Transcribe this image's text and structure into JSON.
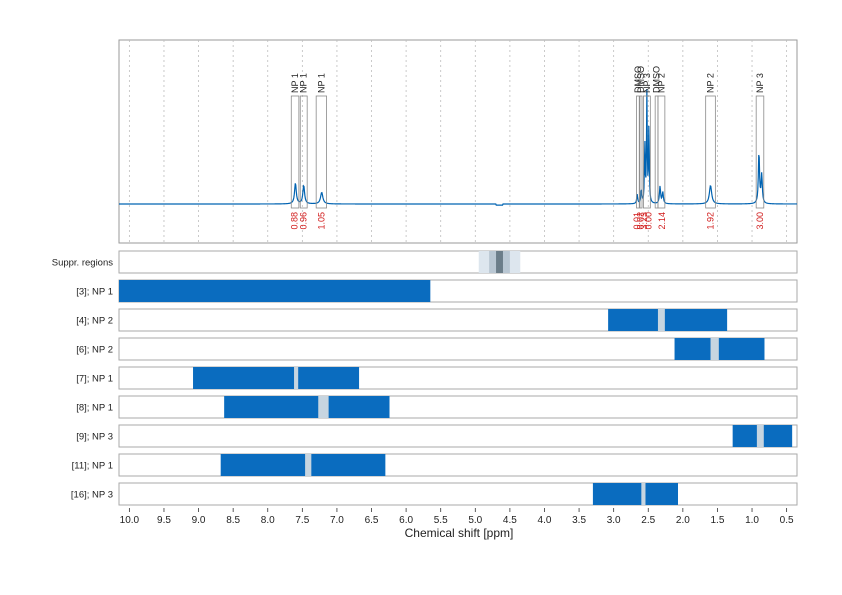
{
  "chart_data": {
    "type": "nmr-spectrum-with-regions",
    "xlabel": "Chemical shift [ppm]",
    "xlim": [
      10.15,
      0.35
    ],
    "x_reversed": true,
    "x_ticks": [
      "10.0",
      "9.5",
      "9.0",
      "8.5",
      "8.0",
      "7.5",
      "7.0",
      "6.5",
      "6.0",
      "5.5",
      "5.0",
      "4.5",
      "4.0",
      "3.5",
      "3.0",
      "2.5",
      "2.0",
      "1.5",
      "1.0",
      "0.5"
    ],
    "grid": "vertical dotted lines at every 0.5 ppm in the spectrum panel",
    "line_color": "#0063b2",
    "bar_color": "#0a6cbf",
    "gap_color": "#c7d5e0",
    "annotation_color": "#d11a1a",
    "spectrum_peaks": [
      {
        "ppm": 7.6,
        "height": 0.18,
        "width": 0.015
      },
      {
        "ppm": 7.48,
        "height": 0.16,
        "width": 0.015
      },
      {
        "ppm": 7.22,
        "height": 0.1,
        "width": 0.02
      },
      {
        "ppm": 2.66,
        "height": 0.08,
        "width": 0.008
      },
      {
        "ppm": 2.6,
        "height": 0.12,
        "width": 0.008
      },
      {
        "ppm": 2.55,
        "height": 0.55,
        "width": 0.006
      },
      {
        "ppm": 2.52,
        "height": 0.95,
        "width": 0.006
      },
      {
        "ppm": 2.49,
        "height": 0.7,
        "width": 0.006
      },
      {
        "ppm": 2.33,
        "height": 0.15,
        "width": 0.01
      },
      {
        "ppm": 2.29,
        "height": 0.1,
        "width": 0.01
      },
      {
        "ppm": 1.6,
        "height": 0.16,
        "width": 0.02
      },
      {
        "ppm": 0.9,
        "height": 0.45,
        "width": 0.01
      },
      {
        "ppm": 0.86,
        "height": 0.25,
        "width": 0.01
      }
    ],
    "peak_labels": [
      {
        "label": "NP 1",
        "lo": 7.55,
        "hi": 7.66
      },
      {
        "label": "NP 1",
        "lo": 7.43,
        "hi": 7.53
      },
      {
        "label": "NP 1",
        "lo": 7.15,
        "hi": 7.3
      },
      {
        "label": "DMSO",
        "lo": 2.63,
        "hi": 2.67
      },
      {
        "label": "DMSO",
        "lo": 2.59,
        "hi": 2.62
      },
      {
        "label": "NP 3",
        "lo": 2.47,
        "hi": 2.57
      },
      {
        "label": "DMSO",
        "lo": 2.36,
        "hi": 2.4
      },
      {
        "label": "NP 2",
        "lo": 2.26,
        "hi": 2.36
      },
      {
        "label": "NP 2",
        "lo": 1.53,
        "hi": 1.67
      },
      {
        "label": "NP 3",
        "lo": 0.83,
        "hi": 0.94
      }
    ],
    "integrals": [
      {
        "text": "0.88",
        "ppm": 7.61
      },
      {
        "text": "0.96",
        "ppm": 7.48
      },
      {
        "text": "1.05",
        "ppm": 7.22
      },
      {
        "text": "0.01",
        "ppm": 2.66
      },
      {
        "text": "0.02",
        "ppm": 2.615
      },
      {
        "text": "3.23",
        "ppm": 2.56
      },
      {
        "text": "0.00",
        "ppm": 2.495
      },
      {
        "text": "2.14",
        "ppm": 2.3
      },
      {
        "text": "1.92",
        "ppm": 1.6
      },
      {
        "text": "3.00",
        "ppm": 0.885
      }
    ],
    "rows": [
      {
        "label": "Suppr. regions",
        "type": "suppression",
        "outer": [
          4.95,
          4.35
        ],
        "middle": [
          4.8,
          4.5
        ],
        "inner": [
          4.7,
          4.6
        ]
      },
      {
        "label": "[3]; NP 1",
        "bar": [
          10.15,
          5.65
        ],
        "gap": null
      },
      {
        "label": "[4]; NP 2",
        "bar": [
          3.08,
          1.36
        ],
        "gap": [
          2.36,
          2.26
        ]
      },
      {
        "label": "[6]; NP 2",
        "bar": [
          2.12,
          0.82
        ],
        "gap": [
          1.6,
          1.48
        ]
      },
      {
        "label": "[7]; NP 1",
        "bar": [
          9.08,
          6.68
        ],
        "gap": [
          7.62,
          7.56
        ]
      },
      {
        "label": "[8]; NP 1",
        "bar": [
          8.63,
          6.24
        ],
        "gap": [
          7.27,
          7.12
        ]
      },
      {
        "label": "[9]; NP 3",
        "bar": [
          1.28,
          0.42
        ],
        "gap": [
          0.93,
          0.83
        ]
      },
      {
        "label": "[11]; NP 1",
        "bar": [
          8.68,
          6.3
        ],
        "gap": [
          7.46,
          7.37
        ]
      },
      {
        "label": "[16]; NP 3",
        "bar": [
          3.3,
          2.07
        ],
        "gap": [
          2.6,
          2.54
        ]
      }
    ]
  }
}
